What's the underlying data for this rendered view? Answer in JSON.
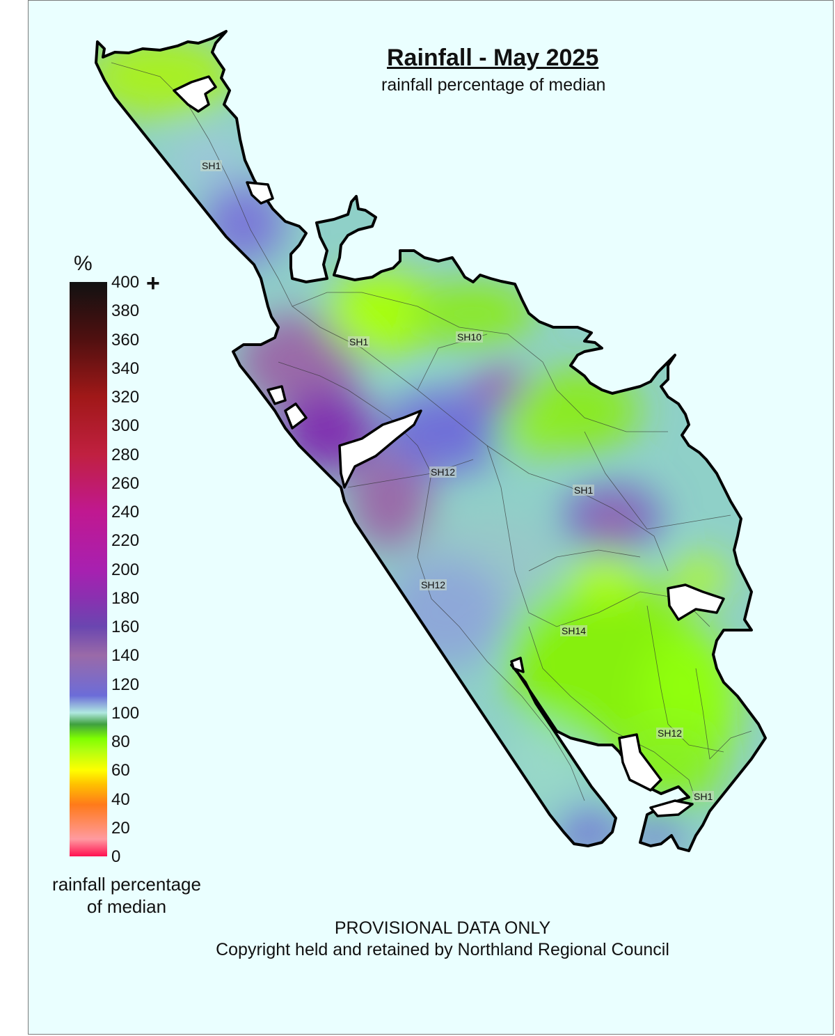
{
  "map": {
    "title": "Rainfall - May 2025",
    "subtitle": "rainfall percentage of median",
    "footer_line1": "PROVISIONAL DATA ONLY",
    "footer_line2": "Copyright held and retained by Northland Regional Council",
    "road_labels": [
      "SH1",
      "SH1",
      "SH10",
      "SH12",
      "SH1",
      "SH12",
      "SH14",
      "SH12",
      "SH1"
    ]
  },
  "legend": {
    "unit": "%",
    "plus": "+",
    "caption": "rainfall percentage of median",
    "ticks": [
      "400",
      "380",
      "360",
      "340",
      "320",
      "300",
      "280",
      "260",
      "240",
      "220",
      "200",
      "180",
      "160",
      "140",
      "120",
      "100",
      "80",
      "60",
      "40",
      "20",
      "0"
    ],
    "colors": {
      "0": "#ff1050",
      "20": "#ff9aa0",
      "40": "#ff7a1a",
      "50": "#ffc000",
      "60": "#ffff00",
      "80": "#7fff00",
      "90": "#3fa040",
      "100": "#b0e8e0",
      "120": "#6c6cd8",
      "140": "#9a6aa8",
      "160": "#6a46b0",
      "180": "#8a30b0",
      "200": "#a820b0",
      "240": "#c01890",
      "280": "#c02040",
      "320": "#a01818",
      "360": "#501010",
      "400": "#111111"
    }
  },
  "colors": {
    "background": "#eaffff",
    "coastline": "#000000",
    "roads": "#333333"
  }
}
